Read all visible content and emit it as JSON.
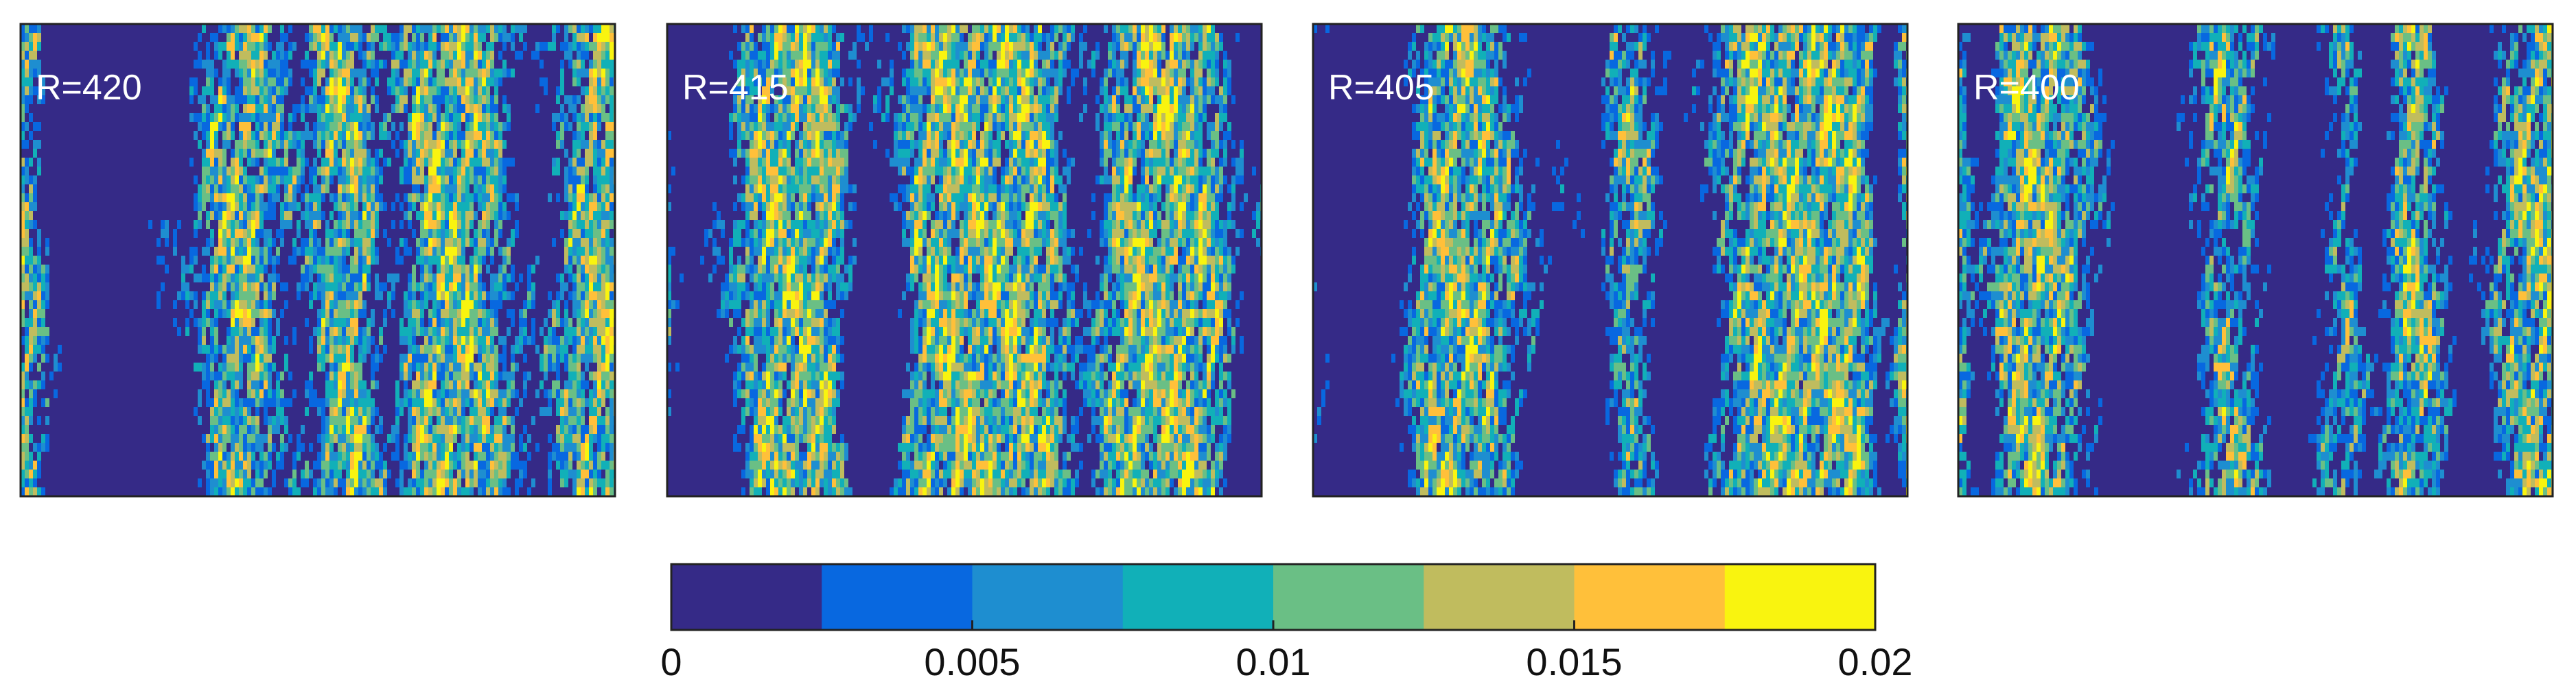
{
  "chart_data": {
    "type": "heatmap",
    "panels": [
      {
        "label": "R=420",
        "R": 420,
        "dark_streaks": 0.3
      },
      {
        "label": "R=415",
        "R": 415,
        "dark_streaks": 0.34
      },
      {
        "label": "R=405",
        "R": 405,
        "dark_streaks": 0.4
      },
      {
        "label": "R=400",
        "R": 400,
        "dark_streaks": 0.48
      }
    ],
    "colorbar": {
      "range": [
        0,
        0.02
      ],
      "levels": 8,
      "colors": [
        "#352a87",
        "#0868e0",
        "#1e8ed0",
        "#11b0b8",
        "#6abf85",
        "#c0bc5e",
        "#ffc03a",
        "#f9f40f"
      ],
      "ticks": [
        0,
        0.005,
        0.01,
        0.015,
        0.02
      ],
      "tick_labels": [
        "0",
        "0.005",
        "0.01",
        "0.015",
        "0.02"
      ]
    }
  }
}
